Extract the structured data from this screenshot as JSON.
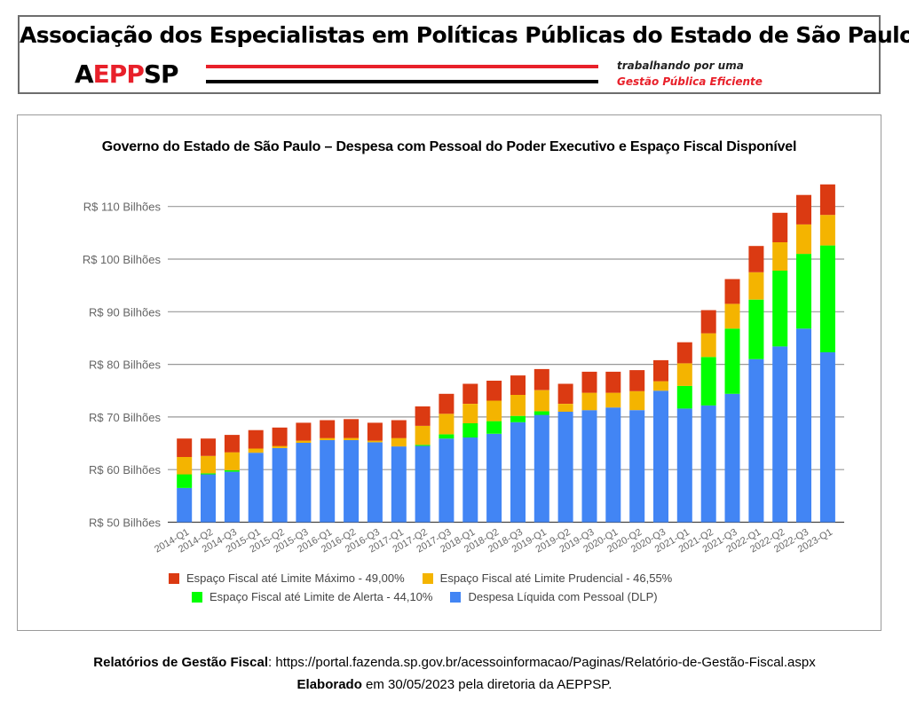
{
  "header": {
    "org_name": "Associação dos Especialistas em Políticas Públicas do Estado de São Paulo",
    "logo_parts": [
      "A",
      "EPP",
      "SP"
    ],
    "tagline_line1": "trabalhando por uma",
    "tagline_line2": "Gestão Pública Eficiente",
    "colors": {
      "brand_red": "#e8202a",
      "brand_black": "#000000"
    }
  },
  "chart_data": {
    "type": "bar",
    "stacked": true,
    "title": "Governo do Estado de São Paulo – Despesa com Pessoal do Poder Executivo e Espaço Fiscal Disponível",
    "xlabel": "",
    "ylabel": "",
    "ylim": [
      50,
      115
    ],
    "yticks": [
      50,
      60,
      70,
      80,
      90,
      100,
      110
    ],
    "ytick_labels": [
      "R$ 50 Bilhões",
      "R$ 60 Bilhões",
      "R$ 70 Bilhões",
      "R$ 80 Bilhões",
      "R$ 90 Bilhões",
      "R$ 100 Bilhões",
      "R$ 110 Bilhões"
    ],
    "grid": true,
    "legend_position": "bottom",
    "categories": [
      "2014-Q1",
      "2014-Q2",
      "2014-Q3",
      "2015-Q1",
      "2015-Q2",
      "2015-Q3",
      "2016-Q1",
      "2016-Q2",
      "2016-Q3",
      "2017-Q1",
      "2017-Q2",
      "2017-Q3",
      "2018-Q1",
      "2018-Q2",
      "2018-Q3",
      "2019-Q1",
      "2019-Q2",
      "2019-Q3",
      "2020-Q1",
      "2020-Q2",
      "2020-Q3",
      "2021-Q1",
      "2021-Q2",
      "2021-Q3",
      "2022-Q1",
      "2022-Q2",
      "2022-Q3",
      "2023-Q1"
    ],
    "cumulative_note": "Series values are cumulative stack tops in R$ bilhões",
    "series": [
      {
        "name": "Despesa Líquida com Pessoal (DLP)",
        "color": "#4285f4",
        "values": [
          56.5,
          59.1,
          59.6,
          63.2,
          64.1,
          65.1,
          65.6,
          65.6,
          65.2,
          64.4,
          64.5,
          65.9,
          66.1,
          66.8,
          69.0,
          70.4,
          71.0,
          71.3,
          71.8,
          71.3,
          75.0,
          71.6,
          72.2,
          74.4,
          81.0,
          83.4,
          86.8,
          82.3
        ]
      },
      {
        "name": "Espaço Fiscal até Limite de Alerta - 44,10%",
        "color": "#00ff00",
        "values": [
          59.1,
          59.3,
          59.9,
          63.2,
          64.1,
          65.1,
          65.6,
          65.6,
          65.2,
          64.4,
          64.7,
          66.7,
          68.8,
          69.2,
          70.2,
          71.1,
          71.0,
          71.3,
          71.8,
          71.3,
          75.0,
          75.9,
          81.4,
          86.8,
          92.3,
          97.8,
          101.0,
          102.6
        ]
      },
      {
        "name": "Espaço Fiscal até Limite Prudencial - 46,55%",
        "color": "#f4b400",
        "values": [
          62.4,
          62.6,
          63.3,
          64.0,
          64.5,
          65.5,
          66.0,
          66.0,
          65.5,
          66.0,
          68.3,
          70.6,
          72.5,
          73.1,
          74.2,
          75.1,
          72.5,
          74.6,
          74.6,
          74.9,
          76.8,
          80.2,
          85.9,
          91.5,
          97.5,
          103.2,
          106.6,
          108.4
        ]
      },
      {
        "name": "Espaço Fiscal até Limite Máximo - 49,00%",
        "color": "#db3a12",
        "values": [
          65.9,
          65.9,
          66.6,
          67.5,
          68.0,
          68.9,
          69.4,
          69.6,
          68.9,
          69.4,
          72.0,
          74.4,
          76.3,
          76.9,
          77.9,
          79.1,
          76.3,
          78.6,
          78.6,
          78.9,
          80.8,
          84.2,
          90.3,
          96.2,
          102.5,
          108.8,
          112.2,
          114.2
        ]
      }
    ],
    "legend": [
      {
        "label": "Espaço Fiscal até Limite Máximo - 49,00%",
        "color": "#db3a12"
      },
      {
        "label": "Espaço Fiscal até Limite Prudencial - 46,55%",
        "color": "#f4b400"
      },
      {
        "label": "Espaço Fiscal até Limite de Alerta - 44,10%",
        "color": "#00ff00"
      },
      {
        "label": "Despesa Líquida com Pessoal (DLP)",
        "color": "#4285f4"
      }
    ]
  },
  "footer": {
    "source_label": "Relatórios de Gestão Fiscal",
    "source_sep": ": ",
    "source_url": "https://portal.fazenda.sp.gov.br/acessoinformacao/Paginas/Relatório-de-Gestão-Fiscal.aspx",
    "made_label": "Elaborado",
    "made_text": " em 30/05/2023 pela diretoria da AEPPSP."
  }
}
